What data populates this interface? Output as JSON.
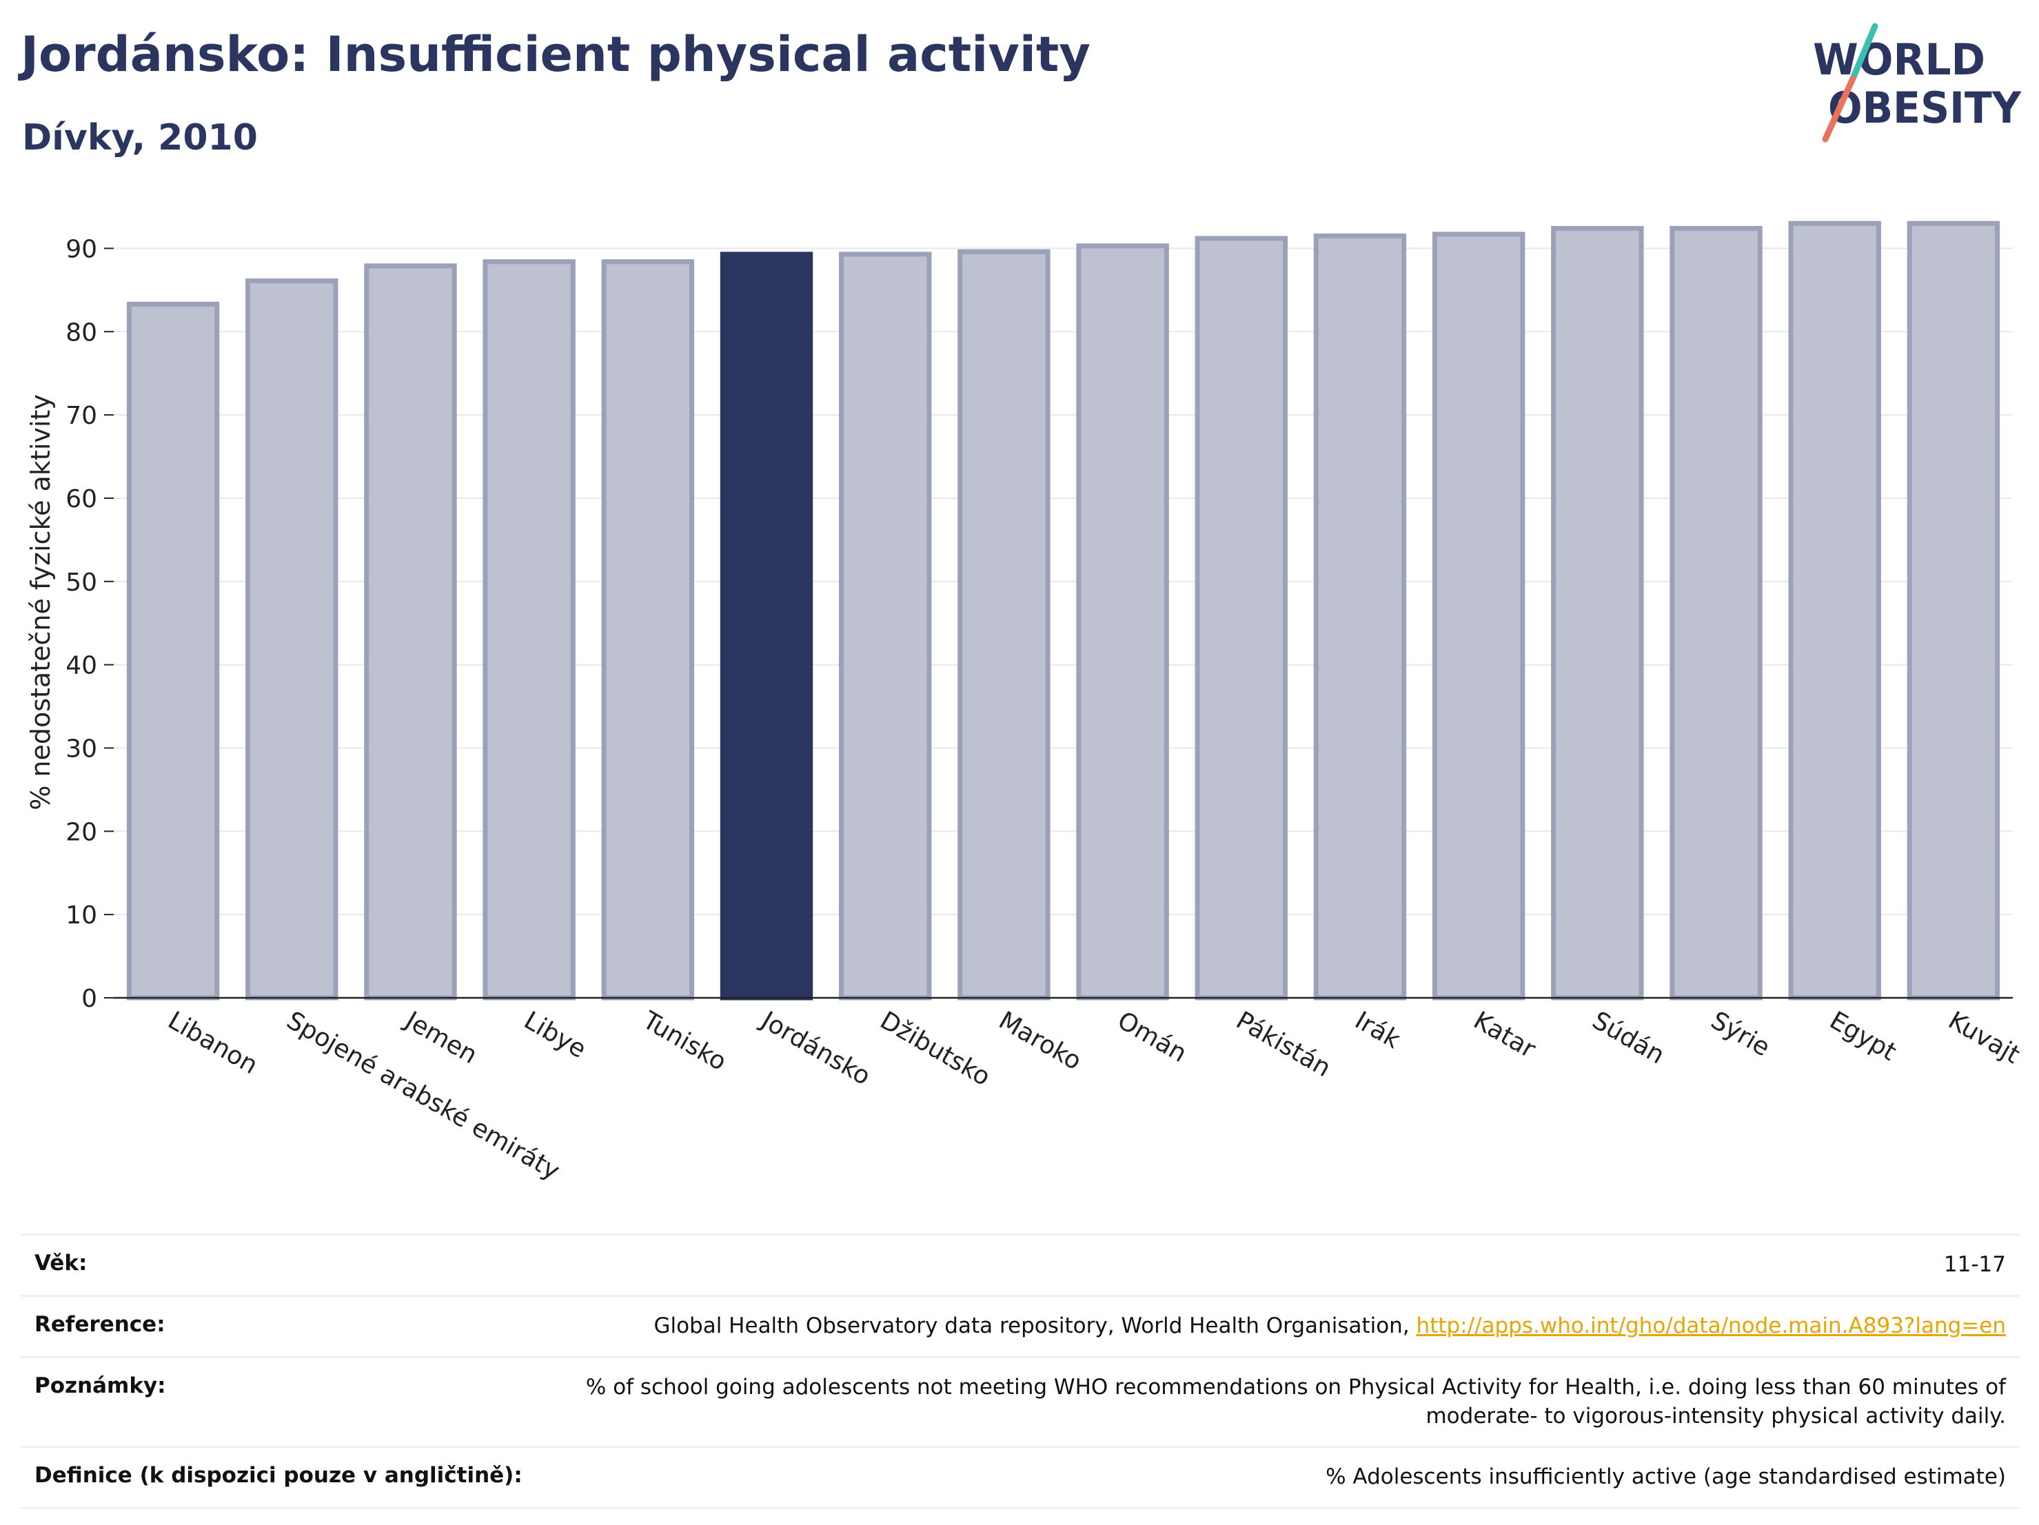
{
  "header": {
    "title": "Jordánsko: Insufficient physical activity",
    "subtitle": "Dívky, 2010"
  },
  "logo": {
    "line1": "WORLD",
    "line2": "OBESITY",
    "name": "world-obesity-logo"
  },
  "colors": {
    "highlight": "#2b3660",
    "bar": "#bec2d0",
    "bar_edge": "#9aa1b8",
    "accent_teal": "#3dbfb0",
    "accent_coral": "#e8735f",
    "link": "#e8a400"
  },
  "chart_data": {
    "type": "bar",
    "ylabel": "% nedostatečné fyzické aktivity",
    "ylim": [
      0,
      95
    ],
    "yticks": [
      0,
      10,
      20,
      30,
      40,
      50,
      60,
      70,
      80,
      90
    ],
    "grid": true,
    "highlight_category": "Jordánsko",
    "categories": [
      "Libanon",
      "Spojené arabské emiráty",
      "Jemen",
      "Libye",
      "Tunisko",
      "Jordánsko",
      "Džibutsko",
      "Maroko",
      "Omán",
      "Pákistán",
      "Irák",
      "Katar",
      "Súdán",
      "Sýrie",
      "Egypt",
      "Kuvajt"
    ],
    "values": [
      83.3,
      86.1,
      87.9,
      88.4,
      88.4,
      89.3,
      89.3,
      89.6,
      90.3,
      91.2,
      91.5,
      91.7,
      92.4,
      92.4,
      93.0,
      93.0
    ]
  },
  "info": {
    "age_label": "Věk:",
    "age_value": "11-17",
    "reference_label": "Reference:",
    "reference_text": "Global Health Observatory data repository, World Health Organisation, ",
    "reference_link": "http://apps.who.int/gho/data/node.main.A893?lang=en",
    "notes_label": "Poznámky:",
    "notes_line1": "% of school going adolescents not meeting WHO recommendations on Physical Activity for Health, i.e. doing less than 60 minutes of",
    "notes_line2": "moderate- to vigorous-intensity physical activity daily.",
    "definition_label": "Definice (k dispozici pouze v angličtině):",
    "definition_value": "% Adolescents insufficiently active (age standardised estimate)"
  }
}
